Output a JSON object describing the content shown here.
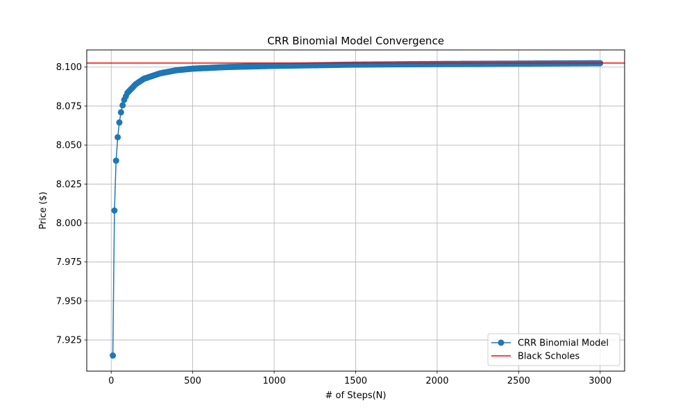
{
  "chart_data": {
    "type": "line",
    "title": "CRR Binomial Model Convergence",
    "xlabel": "# of Steps(N)",
    "ylabel": "Price ($)",
    "xlim": [
      -150,
      3150
    ],
    "ylim": [
      7.905,
      8.111
    ],
    "xticks": [
      0,
      500,
      1000,
      1500,
      2000,
      2500,
      3000
    ],
    "yticks": [
      7.925,
      7.95,
      7.975,
      8.0,
      8.025,
      8.05,
      8.075,
      8.1
    ],
    "xtick_labels": [
      "0",
      "500",
      "1000",
      "1500",
      "2000",
      "2500",
      "3000"
    ],
    "ytick_labels": [
      "7.925",
      "7.950",
      "7.975",
      "8.000",
      "8.025",
      "8.050",
      "8.075",
      "8.100"
    ],
    "grid": true,
    "legend_position": "lower-right",
    "series": [
      {
        "name": "CRR Binomial Model",
        "kind": "line-markers",
        "color": "#1f77b4",
        "x_start": 10,
        "x_end": 3000,
        "x_step": 10,
        "anchors": [
          [
            10,
            7.915
          ],
          [
            20,
            8.008
          ],
          [
            30,
            8.04
          ],
          [
            40,
            8.055
          ],
          [
            50,
            8.0645
          ],
          [
            60,
            8.071
          ],
          [
            70,
            8.0755
          ],
          [
            80,
            8.079
          ],
          [
            100,
            8.0835
          ],
          [
            150,
            8.089
          ],
          [
            200,
            8.0925
          ],
          [
            300,
            8.096
          ],
          [
            400,
            8.098
          ],
          [
            500,
            8.099
          ],
          [
            700,
            8.1
          ],
          [
            1000,
            8.1008
          ],
          [
            1500,
            8.1016
          ],
          [
            2000,
            8.102
          ],
          [
            3000,
            8.1025
          ]
        ]
      },
      {
        "name": "Black Scholes",
        "kind": "hline",
        "color": "#ff0000",
        "value": 8.1026
      }
    ]
  }
}
